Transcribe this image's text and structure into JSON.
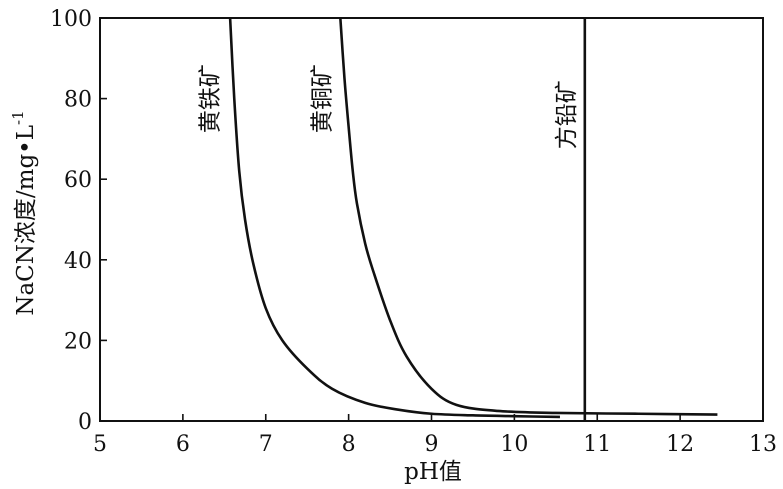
{
  "chart_data": {
    "type": "line",
    "xlabel": "pH值",
    "ylabel": "NaCN浓度/mg•L",
    "ylabel_superscript": "-1",
    "xlim": [
      5,
      13
    ],
    "ylim": [
      0,
      100
    ],
    "xticks": [
      5,
      6,
      7,
      8,
      9,
      10,
      11,
      12,
      13
    ],
    "yticks": [
      0,
      20,
      40,
      60,
      80,
      100
    ],
    "grid": false,
    "series": [
      {
        "name": "黄铁矿",
        "x": [
          6.57,
          6.62,
          6.68,
          6.75,
          6.85,
          7.0,
          7.2,
          7.5,
          7.8,
          8.2,
          8.6,
          9.0,
          9.5,
          10.0,
          10.55
        ],
        "y": [
          100,
          80,
          62,
          50,
          39,
          28,
          20,
          13,
          8,
          4.5,
          2.8,
          1.8,
          1.4,
          1.2,
          1.0
        ]
      },
      {
        "name": "黄铜矿",
        "x": [
          7.9,
          7.95,
          8.0,
          8.05,
          8.1,
          8.2,
          8.3,
          8.5,
          8.7,
          9.0,
          9.3,
          9.8,
          10.5,
          11.5,
          12.45
        ],
        "y": [
          100,
          85,
          73,
          62,
          54,
          44,
          37,
          25,
          16,
          8,
          4,
          2.5,
          2.0,
          1.8,
          1.6
        ]
      },
      {
        "name": "方铅矿",
        "x": [
          10.85,
          10.85
        ],
        "y": [
          0,
          100
        ]
      }
    ],
    "curve_labels": [
      {
        "text": "黄铁矿",
        "x": 6.42,
        "y": 80
      },
      {
        "text": "黄铜矿",
        "x": 7.77,
        "y": 80
      },
      {
        "text": "方铅矿",
        "x": 10.72,
        "y": 76
      }
    ]
  }
}
